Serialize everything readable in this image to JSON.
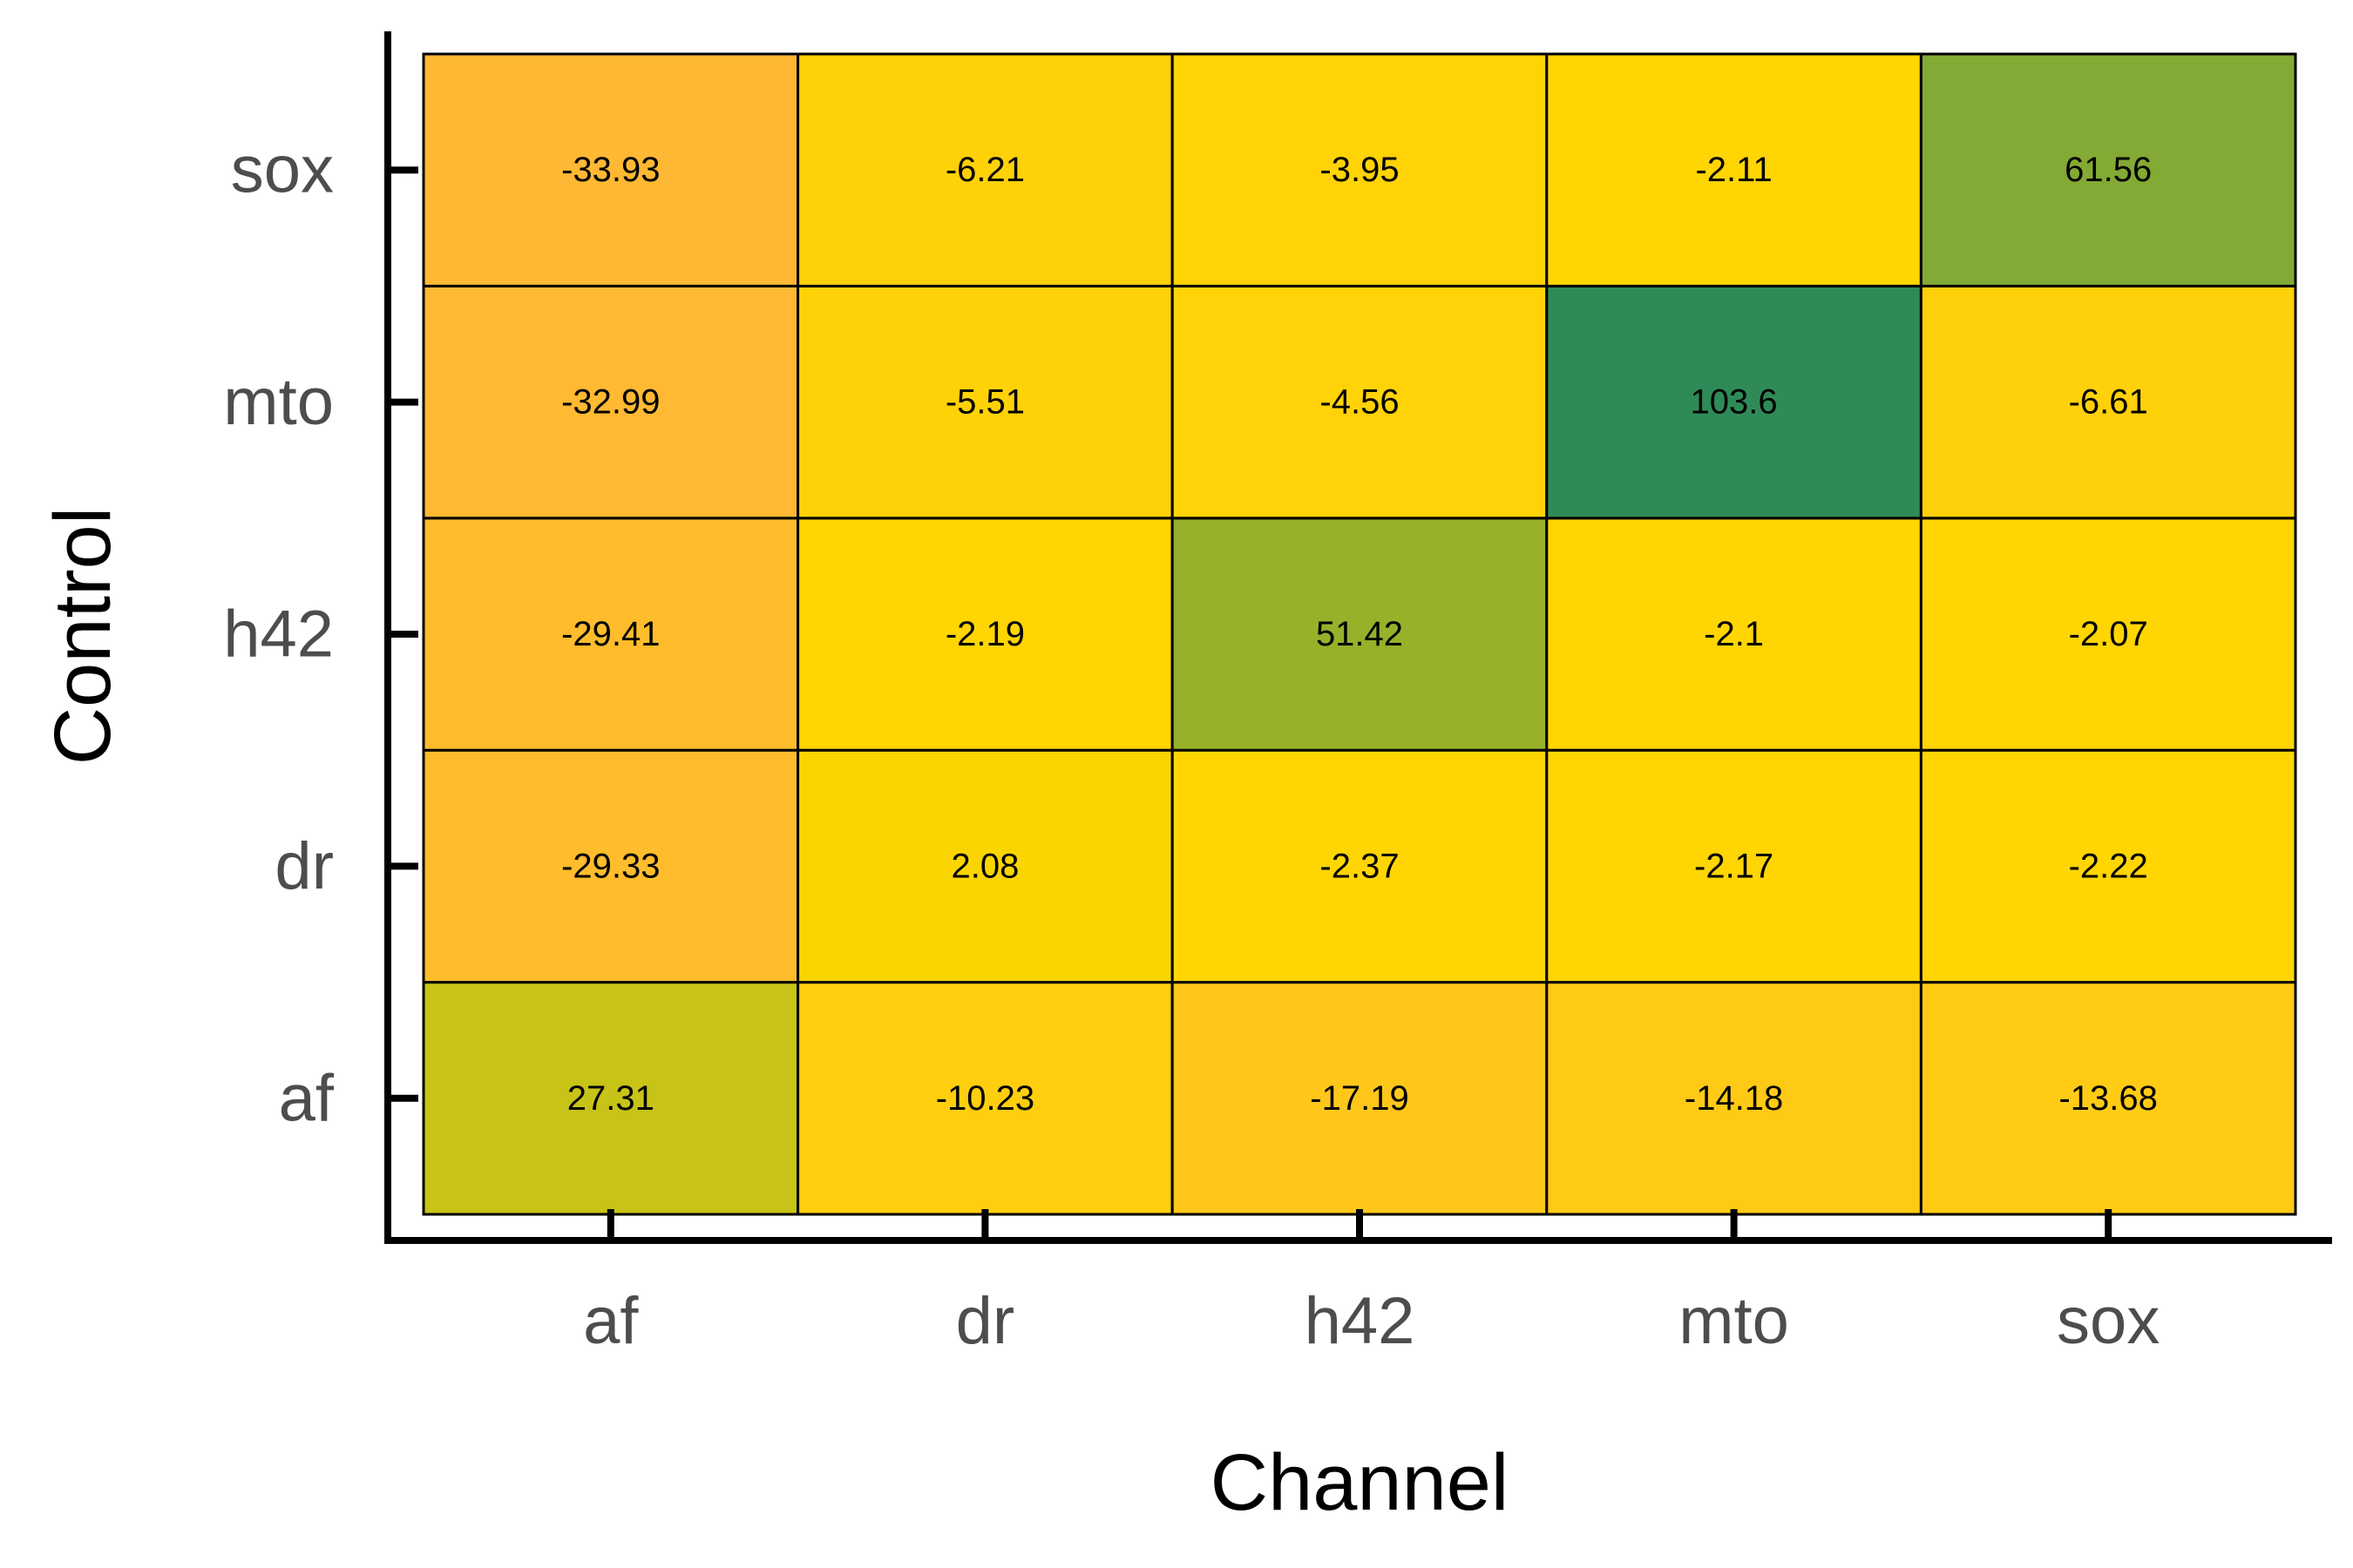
{
  "chart_data": {
    "type": "heatmap",
    "title": "",
    "xlabel": "Channel",
    "ylabel": "Control",
    "x_categories": [
      "af",
      "dr",
      "h42",
      "mto",
      "sox"
    ],
    "y_categories": [
      "af",
      "dr",
      "h42",
      "mto",
      "sox"
    ],
    "values": [
      [
        27.31,
        -10.23,
        -17.19,
        -14.18,
        -13.68
      ],
      [
        -29.33,
        2.08,
        -2.37,
        -2.17,
        -2.22
      ],
      [
        -29.41,
        -2.19,
        51.42,
        -2.1,
        -2.07
      ],
      [
        -32.99,
        -5.51,
        -4.56,
        103.6,
        -6.61
      ],
      [
        -33.93,
        -6.21,
        -3.95,
        -2.11,
        61.56
      ]
    ],
    "value_labels": [
      [
        "27.31",
        "-10.23",
        "-17.19",
        "-14.18",
        "-13.68"
      ],
      [
        "-29.33",
        "2.08",
        "-2.37",
        "-2.17",
        "-2.22"
      ],
      [
        "-29.41",
        "-2.19",
        "51.42",
        "-2.1",
        "-2.07"
      ],
      [
        "-32.99",
        "-5.51",
        "-4.56",
        "103.6",
        "-6.61"
      ],
      [
        "-33.93",
        "-6.21",
        "-3.95",
        "-2.11",
        "61.56"
      ]
    ],
    "legend": "none",
    "grid": false,
    "colors": {
      "low": "#FFB833",
      "mid": "#FFD700",
      "high": "#2E8B57",
      "cell_border": "#000000"
    }
  }
}
